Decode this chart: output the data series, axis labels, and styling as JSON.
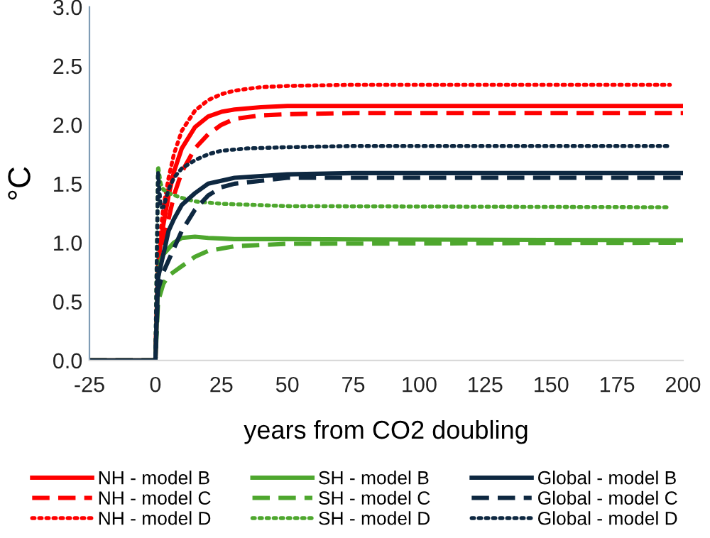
{
  "chart_data": {
    "type": "line",
    "xlabel": "years from CO2 doubling",
    "ylabel": "°C",
    "xlim": [
      -25,
      200
    ],
    "xticks": [
      -25,
      0,
      25,
      50,
      75,
      100,
      125,
      150,
      175,
      200
    ],
    "ylim": [
      0,
      3.0
    ],
    "yticks": [
      {
        "value": 0,
        "label": "0.0"
      },
      {
        "value": 0.5,
        "label": "0.5"
      },
      {
        "value": 1.0,
        "label": "1.0"
      },
      {
        "value": 1.5,
        "label": "1.5"
      },
      {
        "value": 2.0,
        "label": "2.0"
      },
      {
        "value": 2.5,
        "label": "2.5"
      },
      {
        "value": 3.0,
        "label": "3.0"
      }
    ],
    "grid": false,
    "legend": "bottom",
    "marker": "none",
    "series": [
      {
        "name": "NH - model B",
        "color": "#ff0000",
        "line_style": "solid",
        "x": [
          -25,
          0,
          1,
          2,
          3,
          5,
          7,
          10,
          15,
          20,
          25,
          30,
          40,
          50,
          75,
          200
        ],
        "values": [
          0,
          0,
          0.8,
          1.0,
          1.15,
          1.4,
          1.6,
          1.8,
          1.98,
          2.07,
          2.11,
          2.13,
          2.15,
          2.16,
          2.16,
          2.16
        ]
      },
      {
        "name": "NH - model C",
        "color": "#ff0000",
        "line_style": "dashed",
        "x": [
          -25,
          0,
          1,
          3,
          5,
          7,
          10,
          15,
          20,
          25,
          30,
          40,
          50,
          75,
          200
        ],
        "values": [
          0,
          0,
          0.8,
          1.0,
          1.2,
          1.4,
          1.6,
          1.8,
          1.92,
          2.0,
          2.05,
          2.08,
          2.09,
          2.1,
          2.1
        ]
      },
      {
        "name": "NH - model D",
        "color": "#ff0000",
        "line_style": "dotted",
        "x": [
          -25,
          0,
          1,
          3,
          5,
          7,
          10,
          15,
          20,
          25,
          30,
          40,
          50,
          75,
          195
        ],
        "values": [
          0,
          0,
          0.9,
          1.3,
          1.55,
          1.75,
          1.95,
          2.12,
          2.21,
          2.26,
          2.29,
          2.32,
          2.33,
          2.34,
          2.34
        ]
      },
      {
        "name": "SH - model B",
        "color": "#4ea72e",
        "line_style": "solid",
        "x": [
          -25,
          0,
          1,
          2,
          3,
          5,
          7,
          10,
          15,
          20,
          30,
          50,
          200
        ],
        "values": [
          0,
          0,
          0.7,
          0.85,
          0.9,
          0.95,
          1.0,
          1.04,
          1.05,
          1.04,
          1.03,
          1.03,
          1.02
        ]
      },
      {
        "name": "SH - model C",
        "color": "#4ea72e",
        "line_style": "dashed",
        "x": [
          -25,
          0,
          1,
          3,
          5,
          10,
          15,
          20,
          30,
          50,
          200
        ],
        "values": [
          0,
          0,
          0.5,
          0.65,
          0.72,
          0.8,
          0.88,
          0.93,
          0.97,
          0.99,
          1.0
        ]
      },
      {
        "name": "SH - model D",
        "color": "#4ea72e",
        "line_style": "dotted",
        "x": [
          -25,
          0,
          1,
          2,
          3,
          5,
          10,
          15,
          25,
          50,
          195
        ],
        "values": [
          0,
          0,
          1.65,
          1.5,
          1.45,
          1.42,
          1.38,
          1.35,
          1.33,
          1.31,
          1.3
        ]
      },
      {
        "name": "Global - model B",
        "color": "#0e2841",
        "line_style": "solid",
        "x": [
          -25,
          0,
          1,
          3,
          5,
          7,
          10,
          15,
          20,
          30,
          50,
          75,
          200
        ],
        "values": [
          0,
          0,
          0.7,
          0.9,
          1.1,
          1.2,
          1.32,
          1.42,
          1.5,
          1.55,
          1.58,
          1.59,
          1.59
        ]
      },
      {
        "name": "Global - model C",
        "color": "#0e2841",
        "line_style": "dashed",
        "x": [
          -25,
          0,
          1,
          3,
          5,
          10,
          15,
          20,
          25,
          30,
          50,
          200
        ],
        "values": [
          0,
          0,
          0.6,
          0.75,
          0.85,
          1.1,
          1.28,
          1.4,
          1.47,
          1.5,
          1.55,
          1.55
        ]
      },
      {
        "name": "Global - model D",
        "color": "#0e2841",
        "line_style": "dotted",
        "x": [
          -25,
          0,
          1,
          2,
          3,
          5,
          7,
          10,
          15,
          20,
          25,
          35,
          50,
          75,
          195
        ],
        "values": [
          0,
          0,
          1.6,
          1.3,
          1.3,
          1.45,
          1.55,
          1.63,
          1.7,
          1.75,
          1.78,
          1.8,
          1.81,
          1.82,
          1.82
        ]
      }
    ]
  }
}
